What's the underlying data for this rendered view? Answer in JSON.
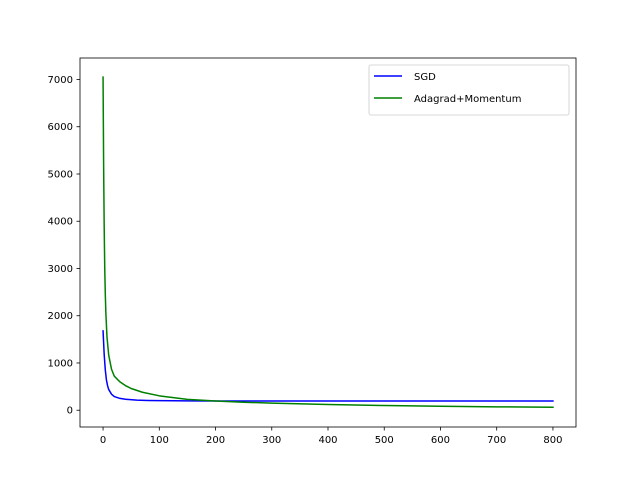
{
  "chart_data": {
    "type": "line",
    "title": "",
    "xlabel": "",
    "ylabel": "",
    "xlim": [
      -41,
      841
    ],
    "ylim": [
      -355,
      7455
    ],
    "xticks": [
      0,
      100,
      200,
      300,
      400,
      500,
      600,
      700,
      800
    ],
    "yticks": [
      0,
      1000,
      2000,
      3000,
      4000,
      5000,
      6000,
      7000
    ],
    "grid": false,
    "legend": {
      "placement": "top-right"
    },
    "series": [
      {
        "name": "SGD",
        "color": "#0000ff",
        "x": [
          0,
          2,
          4,
          6,
          8,
          10,
          15,
          20,
          30,
          40,
          60,
          80,
          100,
          150,
          200,
          250,
          300,
          400,
          500,
          600,
          700,
          800
        ],
        "values": [
          1680,
          1180,
          850,
          640,
          520,
          440,
          340,
          290,
          250,
          232,
          215,
          207,
          203,
          198,
          196,
          195,
          195,
          194,
          194,
          194,
          194,
          194
        ]
      },
      {
        "name": "Adagrad+Momentum",
        "color": "#008000",
        "x": [
          0,
          1,
          2,
          3,
          4,
          5,
          7,
          10,
          15,
          20,
          30,
          40,
          50,
          70,
          100,
          150,
          200,
          250,
          300,
          400,
          500,
          600,
          700,
          800
        ],
        "values": [
          7050,
          5200,
          3900,
          3000,
          2450,
          2050,
          1550,
          1170,
          870,
          720,
          600,
          520,
          460,
          380,
          305,
          230,
          195,
          170,
          150,
          120,
          100,
          85,
          72,
          62
        ]
      }
    ]
  }
}
